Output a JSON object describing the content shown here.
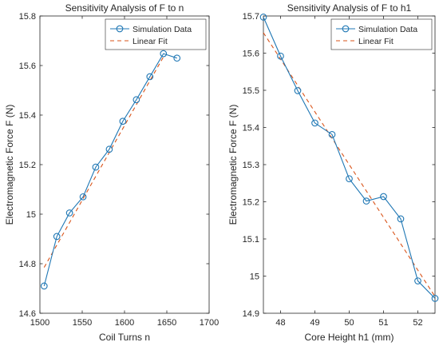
{
  "colors": {
    "simulation": "#1f77b4",
    "fit": "#d95319",
    "axis": "#262626",
    "bg": "#ffffff"
  },
  "chart_data": [
    {
      "type": "line",
      "title": "Sensitivity Analysis of F to n",
      "xlabel": "Coil Turns n",
      "ylabel": "Electromagnetic Force F (N)",
      "xlim": [
        1500,
        1700
      ],
      "ylim": [
        14.6,
        15.8
      ],
      "xticks": [
        1500,
        1550,
        1600,
        1650,
        1700
      ],
      "yticks": [
        14.6,
        14.8,
        15,
        15.2,
        15.4,
        15.6,
        15.8
      ],
      "xtick_labels": [
        "1500",
        "1550",
        "1600",
        "1650",
        "1700"
      ],
      "ytick_labels": [
        "14.6",
        "14.8",
        "15",
        "15.2",
        "15.4",
        "15.6",
        "15.8"
      ],
      "legend_position": "top-right",
      "grid": false,
      "series": [
        {
          "name": "Simulation Data",
          "style": "solid-circle-markers",
          "x": [
            1505,
            1520,
            1535,
            1551,
            1566,
            1582,
            1598,
            1614,
            1630,
            1646,
            1662
          ],
          "y": [
            14.71,
            14.91,
            15.005,
            15.07,
            15.19,
            15.262,
            15.375,
            15.462,
            15.555,
            15.648,
            15.63
          ]
        },
        {
          "name": "Linear Fit",
          "style": "dashed",
          "x": [
            1505,
            1646
          ],
          "y": [
            14.785,
            15.635
          ]
        }
      ]
    },
    {
      "type": "line",
      "title": "Sensitivity Analysis of F to h1",
      "xlabel": "Core Height h1 (mm)",
      "ylabel": "Electromagnetic Force F (N)",
      "xlim": [
        47.5,
        52.5
      ],
      "ylim": [
        14.9,
        15.7
      ],
      "xticks": [
        48,
        49,
        50,
        51,
        52
      ],
      "yticks": [
        14.9,
        15,
        15.1,
        15.2,
        15.3,
        15.4,
        15.5,
        15.6,
        15.7
      ],
      "xtick_labels": [
        "48",
        "49",
        "50",
        "51",
        "52"
      ],
      "ytick_labels": [
        "14.9",
        "15",
        "15.1",
        "15.2",
        "15.3",
        "15.4",
        "15.5",
        "15.6",
        "15.7"
      ],
      "legend_position": "top-right",
      "grid": false,
      "series": [
        {
          "name": "Simulation Data",
          "style": "solid-circle-markers",
          "x": [
            47.5,
            48,
            48.5,
            49,
            49.5,
            50,
            50.5,
            51,
            51.5,
            52,
            52.5
          ],
          "y": [
            15.697,
            15.592,
            15.499,
            15.412,
            15.381,
            15.262,
            15.202,
            15.214,
            15.154,
            14.987,
            14.94
          ]
        },
        {
          "name": "Linear Fit",
          "style": "dashed",
          "x": [
            47.5,
            52.5
          ],
          "y": [
            15.655,
            14.945
          ]
        }
      ]
    }
  ]
}
